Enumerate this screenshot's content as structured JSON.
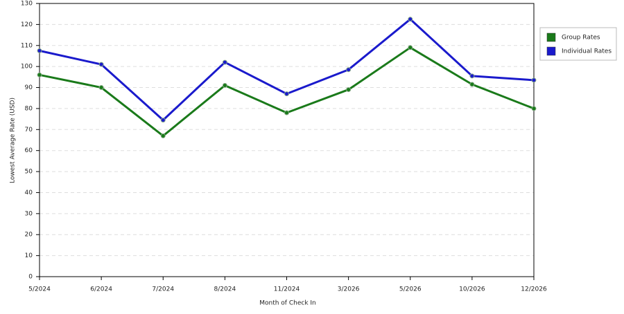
{
  "chart_data": {
    "type": "line",
    "x_label": "Month of Check In",
    "y_label": "Lowest Average Rate (USD)",
    "categories": [
      "5/2024",
      "6/2024",
      "7/2024",
      "8/2024",
      "11/2024",
      "3/2026",
      "5/2026",
      "10/2026",
      "12/2026"
    ],
    "series": [
      {
        "name": "Group Rates",
        "color": "#1a7a1a",
        "values": [
          96,
          90,
          67,
          91,
          78,
          89,
          109,
          91.5,
          80
        ]
      },
      {
        "name": "Individual Rates",
        "color": "#1a1acc",
        "values": [
          107.5,
          101,
          74.5,
          102,
          87,
          98.5,
          122.5,
          95.5,
          93.5
        ]
      }
    ],
    "ylim": [
      0,
      130
    ],
    "yticks": [
      0,
      10,
      20,
      30,
      40,
      50,
      60,
      70,
      80,
      90,
      100,
      110,
      120,
      130
    ],
    "grid": true,
    "legend": "right"
  }
}
